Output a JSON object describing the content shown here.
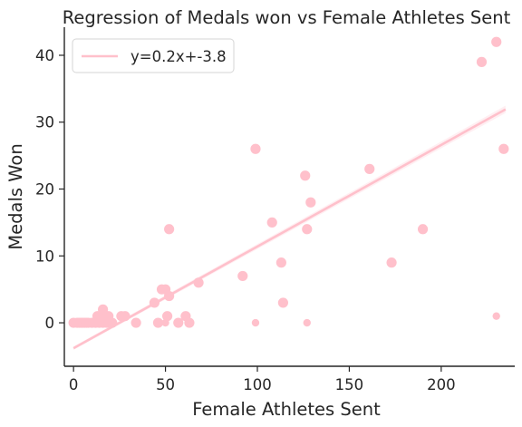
{
  "chart_data": {
    "type": "scatter",
    "title": "Regression of Medals won vs Female Athletes Sent",
    "xlabel": "Female Athletes Sent",
    "ylabel": "Medals Won",
    "xlim": [
      -5,
      240
    ],
    "ylim": [
      -6.5,
      44.2
    ],
    "xticks": [
      0,
      50,
      100,
      150,
      200
    ],
    "yticks": [
      0,
      10,
      20,
      30,
      40
    ],
    "grid": false,
    "legend_position": "top-left",
    "legend_label": "y=0.2x+-3.8",
    "regression": {
      "slope": 0.152,
      "intercept": -3.8,
      "x_range": [
        0,
        235
      ]
    },
    "color": "#ffc0cb",
    "points_large": [
      [
        0,
        0
      ],
      [
        2,
        0
      ],
      [
        3,
        0
      ],
      [
        4,
        0
      ],
      [
        5,
        0
      ],
      [
        6,
        0
      ],
      [
        7,
        0
      ],
      [
        8,
        0
      ],
      [
        10,
        0
      ],
      [
        12,
        0
      ],
      [
        14,
        0
      ],
      [
        16,
        0
      ],
      [
        18,
        0
      ],
      [
        21,
        0
      ],
      [
        13,
        1
      ],
      [
        15,
        1
      ],
      [
        19,
        1
      ],
      [
        16,
        2
      ],
      [
        26,
        1
      ],
      [
        28,
        1
      ],
      [
        34,
        0
      ],
      [
        44,
        3
      ],
      [
        46,
        0
      ],
      [
        48,
        5
      ],
      [
        50,
        5
      ],
      [
        51,
        1
      ],
      [
        52,
        14
      ],
      [
        52,
        4
      ],
      [
        57,
        0
      ],
      [
        61,
        1
      ],
      [
        63,
        0
      ],
      [
        68,
        6
      ],
      [
        92,
        7
      ],
      [
        99,
        26
      ],
      [
        108,
        15
      ],
      [
        113,
        9
      ],
      [
        114,
        3
      ],
      [
        126,
        22
      ],
      [
        127,
        14
      ],
      [
        129,
        18
      ],
      [
        161,
        23
      ],
      [
        173,
        9
      ],
      [
        190,
        14
      ],
      [
        222,
        39
      ],
      [
        230,
        42
      ],
      [
        234,
        26
      ]
    ],
    "points_small": [
      [
        99,
        0
      ],
      [
        127,
        0
      ],
      [
        230,
        1
      ],
      [
        50,
        0
      ]
    ]
  }
}
